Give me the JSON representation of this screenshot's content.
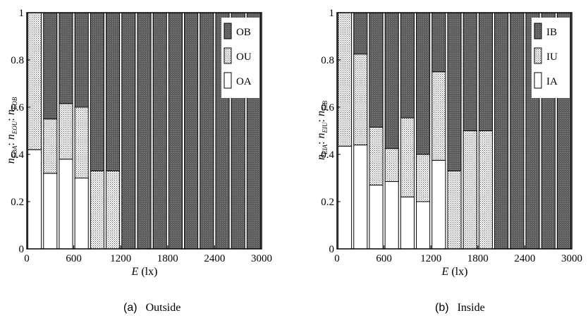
{
  "chart_data": [
    {
      "type": "bar",
      "stacked": true,
      "caption_letter": "(a)",
      "caption_word": "Outside",
      "xlabel": {
        "italic": "E",
        "rest": " (lx)"
      },
      "ylabel": {
        "n1": "n",
        "s1": "EOA",
        "n2": "n",
        "s2": "EOU",
        "n3": "n",
        "s3": "EOB"
      },
      "x_ticks": [
        "0",
        "600",
        "1200",
        "1800",
        "2400",
        "3000"
      ],
      "y_ticks": [
        "0",
        "0.2",
        "0.4",
        "0.6",
        "0.8",
        "1"
      ],
      "xlim": [
        0,
        3000
      ],
      "ylim": [
        0,
        1
      ],
      "legend_position": "top-right",
      "series": [
        {
          "name": "OA",
          "pattern": "white"
        },
        {
          "name": "OU",
          "pattern": "dotted"
        },
        {
          "name": "OB",
          "pattern": "dark"
        }
      ],
      "bars": [
        {
          "x": 100,
          "values": [
            0.42,
            0.58,
            0.0
          ]
        },
        {
          "x": 300,
          "values": [
            0.32,
            0.23,
            0.45
          ]
        },
        {
          "x": 500,
          "values": [
            0.38,
            0.235,
            0.385
          ]
        },
        {
          "x": 700,
          "values": [
            0.3,
            0.3,
            0.4
          ]
        },
        {
          "x": 900,
          "values": [
            0.0,
            0.33,
            0.67
          ]
        },
        {
          "x": 1100,
          "values": [
            0.0,
            0.33,
            0.67
          ]
        },
        {
          "x": 1300,
          "values": [
            0.0,
            0.0,
            1.0
          ]
        },
        {
          "x": 1500,
          "values": [
            0.0,
            0.0,
            1.0
          ]
        },
        {
          "x": 1700,
          "values": [
            0.0,
            0.0,
            1.0
          ]
        },
        {
          "x": 1900,
          "values": [
            0.0,
            0.0,
            1.0
          ]
        },
        {
          "x": 2100,
          "values": [
            0.0,
            0.0,
            1.0
          ]
        },
        {
          "x": 2300,
          "values": [
            0.0,
            0.0,
            1.0
          ]
        },
        {
          "x": 2500,
          "values": [
            0.0,
            0.0,
            1.0
          ]
        },
        {
          "x": 2700,
          "values": [
            0.0,
            0.0,
            1.0
          ]
        },
        {
          "x": 2900,
          "values": [
            0.0,
            0.0,
            1.0
          ]
        }
      ]
    },
    {
      "type": "bar",
      "stacked": true,
      "caption_letter": "(b)",
      "caption_word": "Inside",
      "xlabel": {
        "italic": "E",
        "rest": " (lx)"
      },
      "ylabel": {
        "n1": "n",
        "s1": "EIA",
        "n2": "n",
        "s2": "EIU",
        "n3": "n",
        "s3": "EIB"
      },
      "x_ticks": [
        "0",
        "600",
        "1200",
        "1800",
        "2400",
        "3000"
      ],
      "y_ticks": [
        "0",
        "0.2",
        "0.4",
        "0.6",
        "0.8",
        "1"
      ],
      "xlim": [
        0,
        3000
      ],
      "ylim": [
        0,
        1
      ],
      "legend_position": "top-right",
      "series": [
        {
          "name": "IA",
          "pattern": "white"
        },
        {
          "name": "IU",
          "pattern": "dotted"
        },
        {
          "name": "IB",
          "pattern": "dark"
        }
      ],
      "bars": [
        {
          "x": 100,
          "values": [
            0.435,
            0.565,
            0.0
          ]
        },
        {
          "x": 300,
          "values": [
            0.44,
            0.385,
            0.175
          ]
        },
        {
          "x": 500,
          "values": [
            0.27,
            0.245,
            0.485
          ]
        },
        {
          "x": 700,
          "values": [
            0.285,
            0.14,
            0.575
          ]
        },
        {
          "x": 900,
          "values": [
            0.22,
            0.335,
            0.445
          ]
        },
        {
          "x": 1100,
          "values": [
            0.2,
            0.2,
            0.6
          ]
        },
        {
          "x": 1300,
          "values": [
            0.375,
            0.375,
            0.25
          ]
        },
        {
          "x": 1500,
          "values": [
            0.0,
            0.33,
            0.67
          ]
        },
        {
          "x": 1700,
          "values": [
            0.0,
            0.5,
            0.5
          ]
        },
        {
          "x": 1900,
          "values": [
            0.0,
            0.5,
            0.5
          ]
        },
        {
          "x": 2100,
          "values": [
            0.0,
            0.0,
            1.0
          ]
        },
        {
          "x": 2300,
          "values": [
            0.0,
            0.0,
            1.0
          ]
        },
        {
          "x": 2500,
          "values": [
            0.0,
            0.0,
            1.0
          ]
        },
        {
          "x": 2700,
          "values": [
            0.0,
            0.0,
            1.0
          ]
        },
        {
          "x": 2900,
          "values": [
            0.0,
            0.0,
            1.0
          ]
        }
      ]
    }
  ]
}
